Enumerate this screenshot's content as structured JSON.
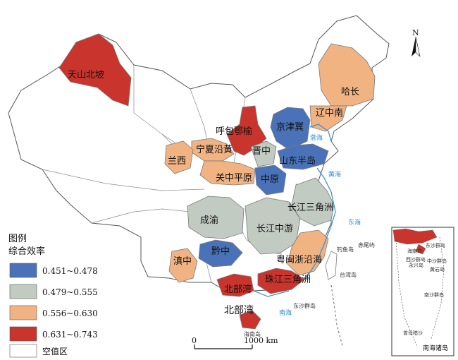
{
  "legend": {
    "title_line1": "图例",
    "title_line2": "综合效率",
    "classes": [
      {
        "label": "0.451~0.478",
        "color": "#4a72b8"
      },
      {
        "label": "0.479~0.555",
        "color": "#c2cbc2"
      },
      {
        "label": "0.556~0.630",
        "color": "#f2b383"
      },
      {
        "label": "0.631~0.743",
        "color": "#c9342c"
      },
      {
        "label": "空值区",
        "color": "#ffffff"
      }
    ]
  },
  "regions": {
    "tianshan": "天山北坡",
    "hachang": "哈长",
    "liaozhongnan": "辽中南",
    "jingjinji": "京津冀",
    "hubao": "呼包鄂榆",
    "ningxia": "宁夏沿黄",
    "jinzhong": "晋中",
    "shandong": "山东半岛",
    "lanxi": "兰西",
    "guanzhong": "关中平原",
    "zhongyuan": "中原",
    "yangtze_delta": "长江三角洲",
    "chengyu": "成渝",
    "yangtze_mid": "长江中游",
    "qianzhong": "黔中",
    "dianzhong": "滇中",
    "minzhe": "粤闽浙沿海",
    "prd": "珠江三角洲",
    "beibuwan_label": "北部湾",
    "beibuwan_big": "北部湾"
  },
  "seas": {
    "bohai": "渤海",
    "huanghai": "黄海",
    "donghai": "东海",
    "nanhai": "南海"
  },
  "islands": {
    "taiwan": "台湾岛",
    "chiwei": "赤尾屿",
    "diaoyu": "钓鱼岛",
    "hainan": "海南岛",
    "dongsha": "东沙群岛"
  },
  "inset": {
    "title": "南海诸岛",
    "labels": [
      "东沙群岛",
      "海南岛",
      "西沙群岛",
      "永兴岛",
      "中沙群岛",
      "黄岩岛",
      "南沙群岛",
      "曾母暗沙"
    ]
  },
  "north_arrow": "N",
  "scale": {
    "start": "0",
    "end": "1000 km"
  }
}
